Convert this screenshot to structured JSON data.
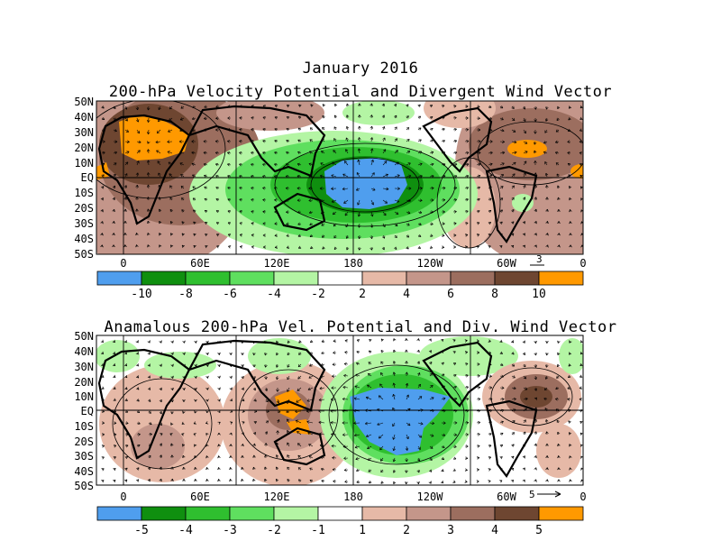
{
  "titles": {
    "month": "January 2016",
    "top": "200-hPa Velocity Potential and Divergent Wind Vector",
    "bottom": "Anamalous 200-hPa Vel. Potential and Div. Wind Vector"
  },
  "lat_labels": [
    "50N",
    "40N",
    "30N",
    "20N",
    "10N",
    "EQ",
    "10S",
    "20S",
    "30S",
    "40S",
    "50S"
  ],
  "lon_labels": [
    "0",
    "60E",
    "120E",
    "180",
    "120W",
    "60W",
    "0"
  ],
  "top_panel": {
    "vector_ref": "3",
    "colorbar": {
      "colors": [
        "#4f9eee",
        "#0f8f0f",
        "#2fbf2f",
        "#5fdf5f",
        "#b4f5a4",
        "#ffffff",
        "#e6b9a7",
        "#c4968a",
        "#9c6e5f",
        "#6e4631",
        "#ff9900"
      ],
      "labels": [
        "-10",
        "-8",
        "-6",
        "-4",
        "-2",
        "2",
        "4",
        "6",
        "8",
        "10"
      ]
    }
  },
  "bottom_panel": {
    "vector_ref": "5",
    "colorbar": {
      "colors": [
        "#4f9eee",
        "#0f8f0f",
        "#2fbf2f",
        "#5fdf5f",
        "#b4f5a4",
        "#ffffff",
        "#e6b9a7",
        "#c4968a",
        "#9c6e5f",
        "#6e4631",
        "#ff9900"
      ],
      "labels": [
        "-5",
        "-4",
        "-3",
        "-2",
        "-1",
        "1",
        "2",
        "3",
        "4",
        "5"
      ]
    }
  }
}
